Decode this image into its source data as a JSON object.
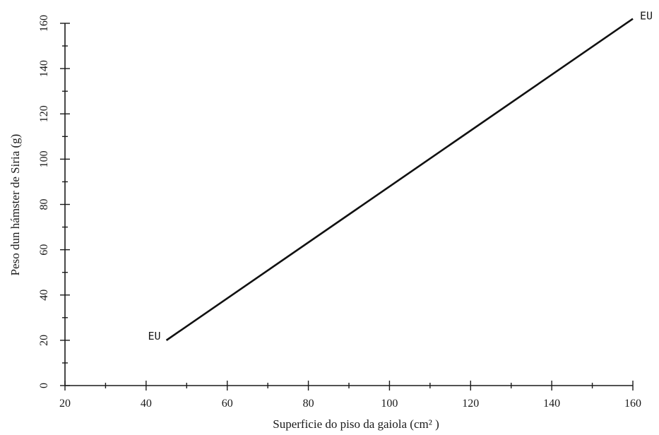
{
  "chart_data": {
    "type": "line",
    "title": "",
    "xlabel": "Superficie do piso da gaiola (cm² )",
    "ylabel": "Peso dun hámster de Siria (g)",
    "xlim": [
      20,
      160
    ],
    "ylim": [
      0,
      160
    ],
    "x_ticks": [
      20,
      40,
      60,
      80,
      100,
      120,
      140,
      160
    ],
    "y_ticks": [
      0,
      20,
      40,
      60,
      80,
      100,
      120,
      140,
      160
    ],
    "grid": false,
    "series": [
      {
        "x": [
          45,
          160
        ],
        "y": [
          20,
          162
        ],
        "color": "#111111"
      }
    ],
    "annotations": [
      {
        "text": "EU",
        "x": 45,
        "y": 20
      },
      {
        "text": "EU",
        "x": 160,
        "y": 162
      }
    ]
  }
}
